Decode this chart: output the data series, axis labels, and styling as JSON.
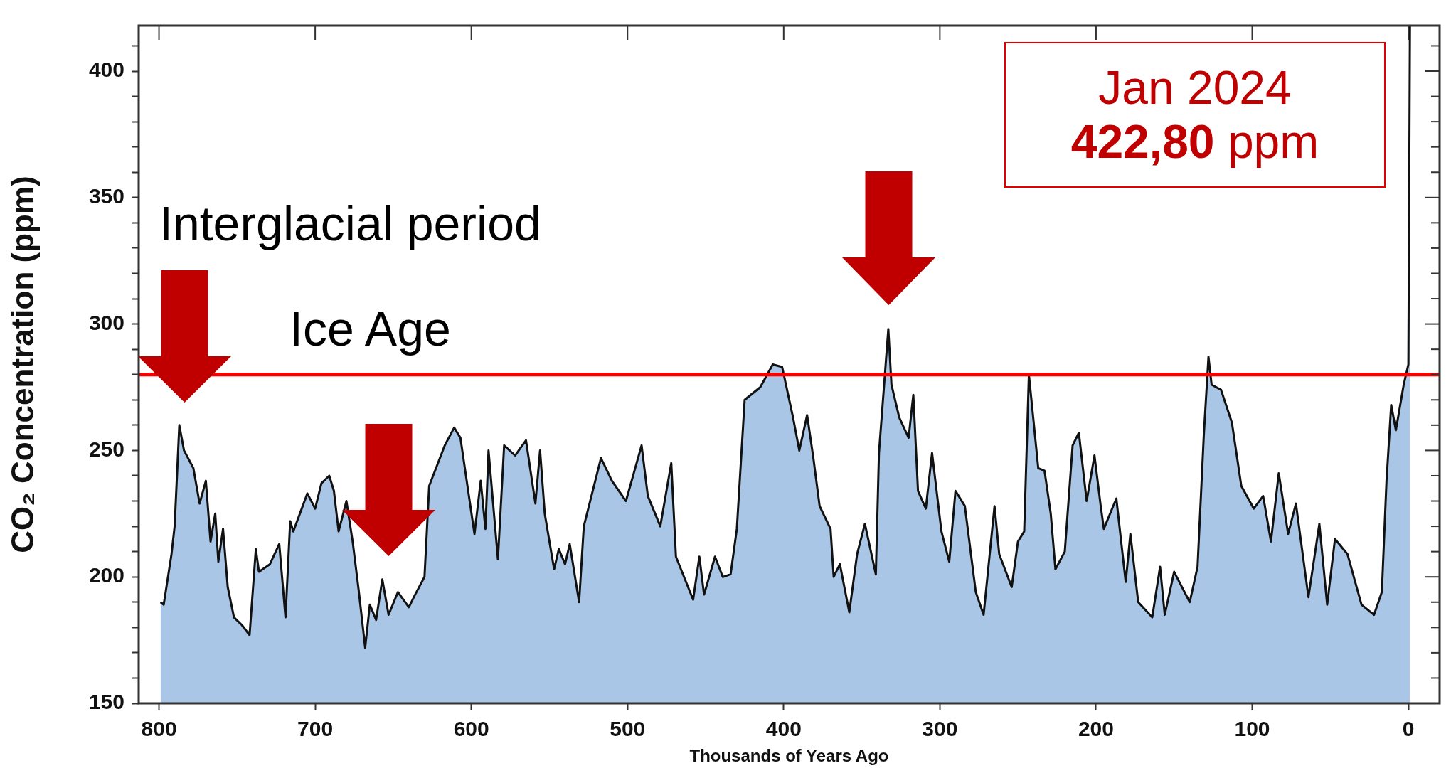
{
  "chart_data": {
    "type": "area",
    "xlabel": "Thousands of Years Ago",
    "ylabel": "CO₂ Concentration (ppm)",
    "xlim": [
      813,
      -20
    ],
    "xticks": [
      800,
      700,
      600,
      500,
      400,
      300,
      200,
      100,
      0
    ],
    "ylim": [
      150,
      418
    ],
    "yticks": [
      150,
      {
        "value": 160,
        "label": null
      },
      {
        "value": 170,
        "label": null
      },
      {
        "value": 180,
        "label": null
      },
      {
        "value": 190,
        "label": null
      },
      200,
      {
        "value": 210,
        "label": null
      },
      {
        "value": 220,
        "label": null
      },
      {
        "value": 230,
        "label": null
      },
      {
        "value": 240,
        "label": null
      },
      250,
      {
        "value": 260,
        "label": null
      },
      {
        "value": 270,
        "label": null
      },
      {
        "value": 280,
        "label": null
      },
      {
        "value": 290,
        "label": null
      },
      300,
      {
        "value": 310,
        "label": null
      },
      {
        "value": 320,
        "label": null
      },
      {
        "value": 330,
        "label": null
      },
      {
        "value": 340,
        "label": null
      },
      350,
      {
        "value": 360,
        "label": null
      },
      {
        "value": 370,
        "label": null
      },
      {
        "value": 380,
        "label": null
      },
      {
        "value": 390,
        "label": null
      },
      400,
      {
        "value": 410,
        "label": null
      }
    ],
    "grid": false,
    "legend": false,
    "marker": "none",
    "x": [
      799,
      797,
      792,
      790,
      787,
      784,
      778,
      774,
      770,
      767,
      764,
      762,
      759,
      756,
      752,
      747,
      742,
      738,
      736,
      729,
      723,
      719,
      716,
      714,
      705,
      700,
      696,
      691,
      688,
      685,
      680,
      676,
      672,
      668,
      665,
      661,
      657,
      653,
      647,
      640,
      636,
      630,
      627,
      617,
      611,
      607,
      598,
      594,
      591,
      589,
      583,
      579,
      572,
      565,
      559,
      556,
      553,
      547,
      544,
      540,
      537,
      531,
      528,
      517,
      510,
      501,
      491,
      487,
      479,
      472,
      469,
      458,
      454,
      451,
      444,
      439,
      434,
      430,
      425,
      415,
      407,
      401,
      394,
      390,
      385,
      381,
      377,
      370,
      368,
      364,
      358,
      353,
      348,
      341,
      339,
      333,
      331,
      326,
      320,
      317,
      314,
      309,
      305,
      299,
      294,
      290,
      284,
      277,
      272,
      265,
      262,
      254,
      250,
      246,
      243,
      237,
      233,
      229,
      226,
      220,
      215,
      211,
      206,
      201,
      197,
      195,
      187,
      181,
      178,
      173,
      164,
      159,
      156,
      150,
      140,
      135,
      131,
      128,
      126,
      120,
      113,
      107,
      99,
      93,
      88,
      83,
      77,
      72,
      64,
      57,
      52,
      47,
      39,
      30,
      22,
      17,
      14,
      11,
      8,
      3,
      0,
      -1
    ],
    "series": [
      {
        "color": "#aac6e6",
        "values": [
          190,
          189,
          209,
          220,
          260,
          250,
          243,
          229,
          238,
          214,
          225,
          206,
          219,
          196,
          184,
          181,
          177,
          211,
          202,
          205,
          213,
          184,
          222,
          218,
          233,
          227,
          237,
          240,
          234,
          218,
          230,
          214,
          194,
          172,
          189,
          183,
          199,
          185,
          194,
          188,
          193,
          200,
          236,
          252,
          259,
          255,
          217,
          238,
          219,
          250,
          207,
          252,
          248,
          254,
          229,
          250,
          225,
          203,
          211,
          205,
          213,
          190,
          220,
          247,
          238,
          230,
          252,
          232,
          220,
          245,
          208,
          191,
          208,
          193,
          208,
          200,
          201,
          219,
          270,
          275,
          284,
          283,
          263,
          250,
          264,
          247,
          228,
          219,
          200,
          205,
          186,
          209,
          221,
          201,
          249,
          298,
          276,
          263,
          255,
          272,
          234,
          227,
          249,
          218,
          206,
          234,
          228,
          194,
          185,
          228,
          209,
          196,
          214,
          218,
          280,
          243,
          242,
          225,
          203,
          210,
          252,
          257,
          230,
          248,
          228,
          219,
          231,
          198,
          217,
          190,
          184,
          204,
          185,
          202,
          190,
          204,
          256,
          287,
          276,
          274,
          261,
          236,
          227,
          232,
          214,
          241,
          217,
          229,
          192,
          221,
          189,
          215,
          209,
          189,
          185,
          194,
          238,
          268,
          258,
          276,
          284,
          418
        ]
      }
    ],
    "ref_lines": [
      {
        "axis": "y",
        "value": 280,
        "color": "#ff0000"
      }
    ],
    "annotations": [
      "Interglacial period",
      "Ice Age",
      "Jan 2024",
      "422,80 ppm"
    ]
  }
}
